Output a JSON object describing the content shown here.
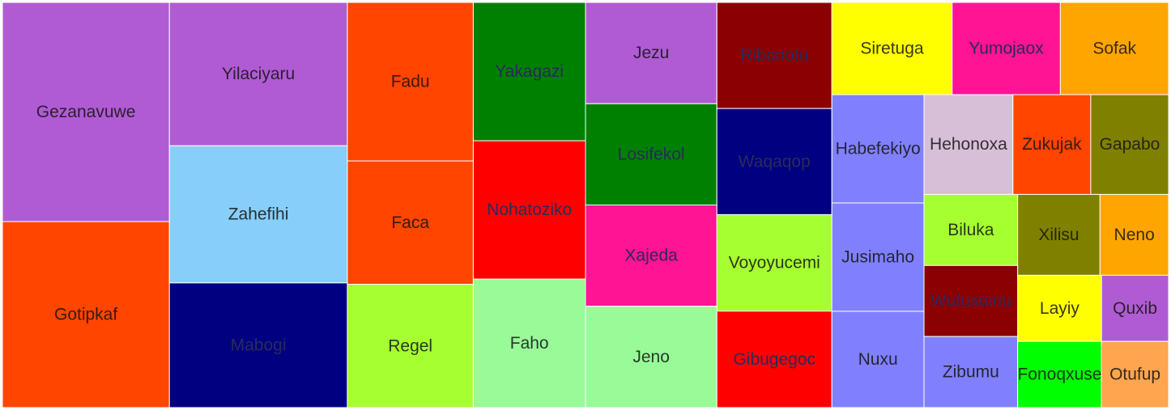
{
  "chart_data": {
    "type": "treemap",
    "title": "",
    "groups": [
      {
        "color": "#b05bd3",
        "items": [
          {
            "name": "Yilaciyaru",
            "value": 23
          },
          {
            "name": "Jezu",
            "value": 12
          },
          {
            "name": "Gezanavuwe",
            "value": 33
          },
          {
            "name": "Quxib",
            "value": 4
          }
        ]
      },
      {
        "color": "#ff4500",
        "items": [
          {
            "name": "Gotipkaf",
            "value": 28
          },
          {
            "name": "Fadu",
            "value": 18
          },
          {
            "name": "Faca",
            "value": 14
          },
          {
            "name": "Zukujak",
            "value": 7
          }
        ]
      },
      {
        "color": "#a6ff30",
        "items": [
          {
            "name": "Regel",
            "value": 14
          },
          {
            "name": "Voyoyucemi",
            "value": 10
          },
          {
            "name": "Biluka",
            "value": 6
          }
        ]
      },
      {
        "color": "#008000",
        "items": [
          {
            "name": "Yakagazi",
            "value": 14
          },
          {
            "name": "Losifekol",
            "value": 12
          }
        ]
      },
      {
        "color": "#ff1493",
        "items": [
          {
            "name": "Xajeda",
            "value": 12
          },
          {
            "name": "Yumojaox",
            "value": 9
          }
        ]
      },
      {
        "color": "#8b0000",
        "items": [
          {
            "name": "Ribanotu",
            "value": 11
          },
          {
            "name": "Wufusomu",
            "value": 6
          }
        ]
      },
      {
        "color": "#87cefa",
        "items": [
          {
            "name": "Zahefihi",
            "value": 22
          }
        ]
      },
      {
        "color": "#000080",
        "items": [
          {
            "name": "Mabogi",
            "value": 20
          },
          {
            "name": "Waqaqop",
            "value": 11
          }
        ]
      },
      {
        "color": "#ff0000",
        "items": [
          {
            "name": "Nohatoziko",
            "value": 14
          },
          {
            "name": "Gibugegoc",
            "value": 10
          }
        ]
      },
      {
        "color": "#98fb98",
        "items": [
          {
            "name": "Faho",
            "value": 13
          },
          {
            "name": "Jeno",
            "value": 12
          }
        ]
      },
      {
        "color": "#ffa500",
        "items": [
          {
            "name": "Sofak",
            "value": 9
          },
          {
            "name": "Neno",
            "value": 5
          }
        ]
      },
      {
        "color": "#8080ff",
        "items": [
          {
            "name": "Habefekiyo",
            "value": 9
          },
          {
            "name": "Jusimaho",
            "value": 9
          },
          {
            "name": "Nuxu",
            "value": 8
          },
          {
            "name": "Zibumu",
            "value": 6
          }
        ]
      },
      {
        "color": "#ffff00",
        "items": [
          {
            "name": "Siretuga",
            "value": 10
          },
          {
            "name": "Layiy",
            "value": 5
          }
        ]
      },
      {
        "color": "#808000",
        "items": [
          {
            "name": "Gapabo",
            "value": 7
          },
          {
            "name": "Xilisu",
            "value": 6
          }
        ]
      },
      {
        "color": "#ffa54f",
        "items": [
          {
            "name": "Otufup",
            "value": 4
          }
        ]
      },
      {
        "color": "#00ff00",
        "items": [
          {
            "name": "Fonoqxuse",
            "value": 5
          }
        ]
      },
      {
        "color": "#d8bfd8",
        "items": [
          {
            "name": "Hehonoxa",
            "value": 8
          }
        ]
      }
    ]
  }
}
